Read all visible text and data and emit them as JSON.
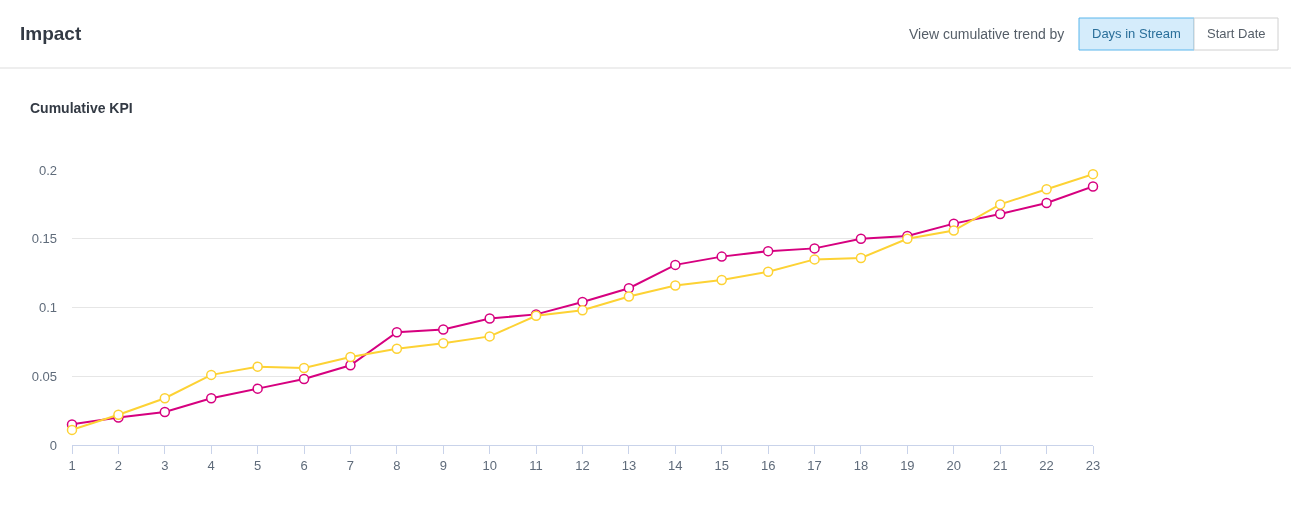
{
  "chart_data": {
    "type": "line",
    "title": "Impact",
    "subtitle": "Cumulative KPI",
    "annotations": [
      "View cumulative trend by",
      "Days in Stream",
      "Start Date"
    ],
    "x": [
      1,
      2,
      3,
      4,
      5,
      6,
      7,
      8,
      9,
      10,
      11,
      12,
      13,
      14,
      15,
      16,
      17,
      18,
      19,
      20,
      21,
      22,
      23
    ],
    "series": [
      {
        "color": "#d6007f",
        "values": [
          0.015,
          0.02,
          0.024,
          0.034,
          0.041,
          0.048,
          0.058,
          0.082,
          0.084,
          0.092,
          0.095,
          0.104,
          0.114,
          0.131,
          0.137,
          0.141,
          0.143,
          0.15,
          0.152,
          0.161,
          0.168,
          0.176,
          0.188
        ]
      },
      {
        "color": "#fdd234",
        "values": [
          0.011,
          0.022,
          0.034,
          0.051,
          0.057,
          0.056,
          0.064,
          0.07,
          0.074,
          0.079,
          0.094,
          0.098,
          0.108,
          0.116,
          0.12,
          0.126,
          0.135,
          0.136,
          0.15,
          0.156,
          0.175,
          0.186,
          0.197
        ]
      }
    ],
    "xlim": [
      1,
      23
    ],
    "xticks": [
      1,
      2,
      3,
      4,
      5,
      6,
      7,
      8,
      9,
      10,
      11,
      12,
      13,
      14,
      15,
      16,
      17,
      18,
      19,
      20,
      21,
      22,
      23
    ],
    "ylim": [
      0,
      0.2
    ],
    "yticks": [
      0,
      0.05,
      0.1,
      0.15,
      0.2
    ],
    "grid": "y",
    "marker": "circle",
    "line_style": "solid"
  }
}
